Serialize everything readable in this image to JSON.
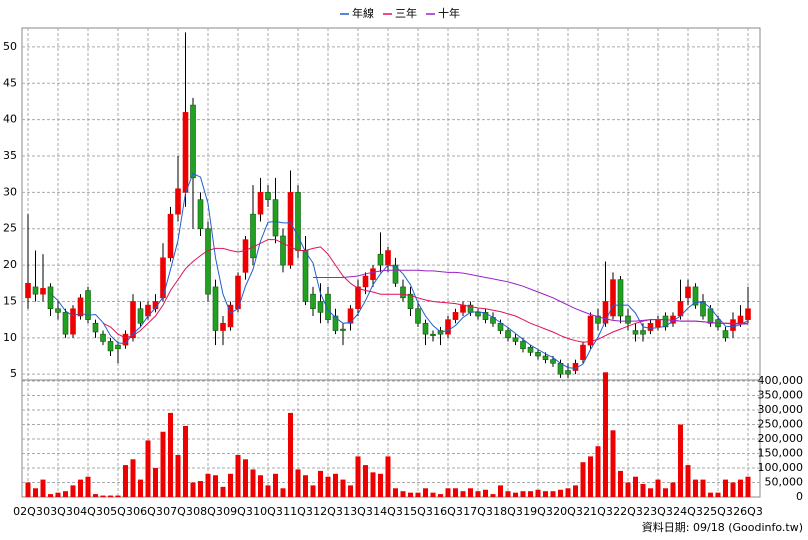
{
  "chart_data": {
    "type": "candlestick",
    "categories": [
      "02Q3",
      null,
      null,
      null,
      "03Q3",
      null,
      null,
      null,
      "04Q3",
      null,
      null,
      null,
      "05Q3",
      null,
      null,
      null,
      "06Q3",
      null,
      null,
      null,
      "07Q3",
      null,
      null,
      null,
      "08Q3",
      null,
      null,
      null,
      "09Q3",
      null,
      null,
      null,
      "10Q3",
      null,
      null,
      null,
      "11Q3",
      null,
      null,
      null,
      "12Q3",
      null,
      null,
      null,
      "13Q3",
      null,
      null,
      null,
      "14Q3",
      null,
      null,
      null,
      "15Q3",
      null,
      null,
      null,
      "16Q3",
      null,
      null,
      null,
      "17Q3",
      null,
      null,
      null,
      "18Q3",
      null,
      null,
      null,
      "19Q3",
      null,
      null,
      null,
      "20Q3",
      null,
      null,
      null,
      "21Q3",
      null,
      null,
      null,
      "22Q3",
      null,
      null,
      null,
      "23Q3",
      null,
      null,
      null,
      "24Q3",
      null,
      null,
      null,
      "25Q3",
      null,
      null,
      null,
      "26Q3"
    ],
    "open": [
      15.5,
      17,
      16,
      17,
      14,
      13.5,
      10.5,
      13,
      16.5,
      12,
      10.5,
      9.5,
      9,
      9,
      10,
      14,
      13,
      14,
      15.5,
      21,
      27,
      30,
      42,
      29,
      25,
      17,
      11,
      11.5,
      14,
      19,
      27,
      27,
      30,
      29,
      24,
      20,
      30,
      22,
      16,
      15,
      16,
      13,
      11.2,
      12,
      14,
      17,
      18,
      21.5,
      20,
      20,
      17,
      16,
      14,
      12,
      10.5,
      11,
      10.5,
      12.5,
      13.5,
      14.5,
      13.5,
      13.5,
      12.8,
      12,
      11,
      10,
      9.5,
      8.7,
      8,
      7.5,
      7,
      6.5,
      5.5,
      5.5,
      7,
      9,
      13,
      12,
      13,
      18,
      13,
      11,
      11,
      11,
      11.5,
      13,
      12,
      13,
      15.5,
      17,
      15,
      14,
      12.5,
      11,
      11,
      12,
      12.5
    ],
    "high": [
      27,
      22,
      21.5,
      17.5,
      15,
      14,
      14.5,
      16,
      17,
      12.5,
      11,
      10,
      9.5,
      11,
      16,
      15,
      15,
      16,
      23,
      28,
      35,
      52,
      43,
      30,
      26,
      18,
      13,
      15,
      19,
      24,
      31,
      32,
      31,
      32,
      25,
      33,
      31,
      24,
      17,
      17.5,
      17,
      14,
      12,
      14.5,
      18,
      19,
      20,
      24.5,
      22.5,
      21,
      18,
      17,
      15,
      12.5,
      11,
      11.5,
      13,
      14,
      15,
      15,
      14,
      14,
      13.5,
      12.5,
      11.5,
      10.5,
      10,
      9,
      8.5,
      8,
      7.5,
      7,
      6.5,
      7,
      9.5,
      13.5,
      14,
      20.5,
      19,
      18.5,
      14,
      12,
      12,
      12.5,
      13,
      13.5,
      13.5,
      18,
      18,
      17.5,
      16,
      14.5,
      13,
      11.5,
      13.5,
      14.5,
      17
    ],
    "low": [
      14,
      15,
      15,
      13,
      12.5,
      10,
      10,
      12.5,
      12,
      10,
      9,
      7.5,
      6.5,
      8.5,
      9.5,
      11.5,
      12.5,
      13.5,
      15,
      20.5,
      26,
      28,
      25,
      24,
      15,
      9,
      9,
      11,
      13.5,
      18,
      20,
      26,
      28,
      23,
      19,
      19.5,
      21,
      14.5,
      13,
      12,
      12,
      10.5,
      9,
      11,
      13,
      16,
      17,
      19,
      19,
      17,
      15,
      13,
      11.5,
      9,
      9.5,
      9,
      10,
      12,
      13,
      13,
      12.5,
      12,
      11.5,
      10.5,
      9.5,
      9,
      8,
      7.5,
      7,
      6.5,
      6,
      4.5,
      4.5,
      5,
      6.5,
      8.5,
      11,
      11.5,
      12.5,
      12,
      11,
      9.5,
      9.5,
      10.5,
      11,
      11,
      11.5,
      12.5,
      14.5,
      14,
      12.5,
      11.5,
      11,
      9.5,
      10,
      11.5,
      12
    ],
    "close": [
      17.5,
      16,
      16.8,
      14,
      13.5,
      10.5,
      14,
      15.5,
      12.5,
      10.8,
      9.5,
      8.2,
      8.5,
      10.5,
      15,
      12,
      14.5,
      15,
      21,
      27,
      30.5,
      41,
      32,
      25,
      16,
      11,
      12,
      14.5,
      18.5,
      23.5,
      21,
      30,
      29,
      24,
      20,
      30,
      22,
      15,
      14,
      13.5,
      12.5,
      11,
      11,
      14,
      17,
      18.5,
      19.5,
      20,
      22,
      17.5,
      15.5,
      14,
      12,
      10.5,
      10.3,
      10.5,
      12.5,
      13.5,
      14.5,
      13.5,
      13,
      12.5,
      12,
      11,
      10,
      9.5,
      8.5,
      8,
      7.5,
      7,
      6.5,
      5,
      5,
      6.5,
      9,
      13,
      12,
      15,
      18,
      13,
      12,
      10.5,
      10.5,
      12,
      12.5,
      11.5,
      13,
      15,
      17,
      14.5,
      13,
      12,
      11.5,
      10,
      12.5,
      13,
      14
    ],
    "up_color": "#ee0000",
    "down_color": "#22a022",
    "series": [
      {
        "name": "年線",
        "color": "#1f5fd0",
        "values": [
          null,
          null,
          null,
          16.1,
          15.1,
          13.7,
          13,
          13.4,
          13.1,
          13.2,
          12.1,
          10.3,
          9.3,
          9.2,
          10.6,
          11.5,
          13,
          14.1,
          15.6,
          19.4,
          23.4,
          29.9,
          32.6,
          32.1,
          28.5,
          21,
          16,
          13.4,
          14,
          17.1,
          19.4,
          23.3,
          25.9,
          26,
          25.8,
          25.8,
          24,
          21.8,
          20.3,
          16.1,
          13.8,
          12.8,
          12,
          12.1,
          13.3,
          15.1,
          17.3,
          18.8,
          20,
          19.8,
          18.8,
          17.3,
          14.8,
          13,
          11.7,
          10.8,
          11,
          11.7,
          12.8,
          13.5,
          13.6,
          13.4,
          12.8,
          12.1,
          11.4,
          10.6,
          9.8,
          9,
          8.4,
          7.8,
          7.3,
          6.5,
          5.9,
          5.8,
          6.4,
          8.4,
          10.1,
          12.3,
          14.5,
          14.5,
          14.5,
          13.4,
          11.5,
          11.3,
          11.4,
          11.6,
          12.3,
          13,
          14.1,
          14.9,
          14.9,
          14.1,
          12.8,
          11.6,
          11.5,
          11.8,
          12.4
        ]
      },
      {
        "name": "三年",
        "color": "#e0105a",
        "values": [
          null,
          null,
          null,
          null,
          null,
          null,
          null,
          null,
          null,
          null,
          12,
          11.5,
          10.5,
          10,
          10.3,
          11,
          12,
          13,
          14.5,
          16.5,
          18,
          19.5,
          20.5,
          21.3,
          22,
          22.3,
          22.3,
          22,
          21.8,
          22,
          22.5,
          23,
          23.5,
          23.5,
          23,
          22.5,
          22,
          22,
          22.3,
          22.5,
          21.5,
          20,
          18.5,
          17.5,
          16.8,
          16.5,
          16.3,
          16,
          16,
          16,
          16,
          15.8,
          15.5,
          15.2,
          15,
          14.9,
          14.8,
          14.7,
          14.5,
          14.3,
          14.1,
          14,
          13.8,
          13.6,
          13.3,
          13,
          12.5,
          12,
          11.6,
          11.2,
          10.8,
          10.3,
          9.9,
          9.6,
          9.4,
          9.5,
          9.8,
          10.3,
          10.8,
          11.2,
          11.6,
          12,
          12.3,
          12.5,
          12.5,
          12.5,
          12.4,
          12.3,
          12.3,
          12.3,
          12.2,
          12.1,
          12,
          12,
          12,
          12,
          12
        ]
      },
      {
        "name": "十年",
        "color": "#9a22c8",
        "values": [
          null,
          null,
          null,
          null,
          null,
          null,
          null,
          null,
          null,
          null,
          null,
          null,
          null,
          null,
          null,
          null,
          null,
          null,
          null,
          null,
          null,
          null,
          null,
          null,
          null,
          null,
          null,
          null,
          null,
          null,
          null,
          null,
          null,
          null,
          null,
          null,
          null,
          null,
          18.3,
          18.3,
          18.3,
          18.3,
          18.3,
          18.4,
          18.5,
          18.8,
          19,
          19.2,
          19.3,
          19.3,
          19.3,
          19.3,
          19.3,
          19.2,
          19.2,
          19.1,
          19,
          19,
          18.9,
          18.7,
          18.5,
          18.3,
          18.1,
          17.9,
          17.7,
          17.4,
          17.1,
          16.7,
          16.3,
          15.9,
          15.5,
          15,
          14.5,
          14,
          13.6,
          13.2,
          12.9,
          12.6,
          12.4,
          12.3,
          12.3,
          12.3,
          12.4,
          12.5,
          12.5,
          12.5,
          12.4,
          12.3,
          12.3,
          12.3,
          12.2,
          12.1,
          12,
          12,
          11.9,
          11.9,
          11.9
        ]
      }
    ],
    "ylim": [
      4.2,
      52.6
    ],
    "yticks": [
      5,
      10,
      15,
      20,
      25,
      30,
      35,
      40,
      45,
      50
    ],
    "grid": true,
    "volume": {
      "color": "#ee0000",
      "values": [
        50000,
        30000,
        60000,
        10000,
        15000,
        20000,
        40000,
        60000,
        70000,
        10000,
        5000,
        5000,
        5000,
        110000,
        130000,
        60000,
        195000,
        100000,
        225000,
        290000,
        145000,
        245000,
        50000,
        55000,
        80000,
        75000,
        35000,
        80000,
        145000,
        130000,
        95000,
        75000,
        40000,
        80000,
        30000,
        290000,
        95000,
        75000,
        40000,
        90000,
        70000,
        80000,
        60000,
        40000,
        140000,
        110000,
        85000,
        80000,
        140000,
        30000,
        20000,
        15000,
        15000,
        30000,
        15000,
        10000,
        30000,
        30000,
        20000,
        30000,
        20000,
        25000,
        10000,
        40000,
        20000,
        15000,
        20000,
        20000,
        25000,
        20000,
        20000,
        25000,
        30000,
        40000,
        120000,
        140000,
        175000,
        430000,
        230000,
        90000,
        50000,
        70000,
        45000,
        30000,
        60000,
        30000,
        50000,
        250000,
        110000,
        60000,
        60000,
        15000,
        15000,
        60000,
        50000,
        60000,
        70000
      ],
      "ylim": [
        0,
        400000
      ],
      "yticks": [
        0,
        {
          "value": 50000,
          "label": "50,000"
        },
        {
          "value": 100000,
          "label": "100,000"
        },
        {
          "value": 150000,
          "label": "150,000"
        },
        {
          "value": 200000,
          "label": "200,000"
        },
        {
          "value": 250000,
          "label": "250,000"
        },
        {
          "value": 300000,
          "label": "300,000"
        },
        {
          "value": 350000,
          "label": "350,000"
        },
        {
          "value": 400000,
          "label": "400,000"
        }
      ]
    },
    "footer": "資料日期: 09/18 (Goodinfo.tw)"
  }
}
